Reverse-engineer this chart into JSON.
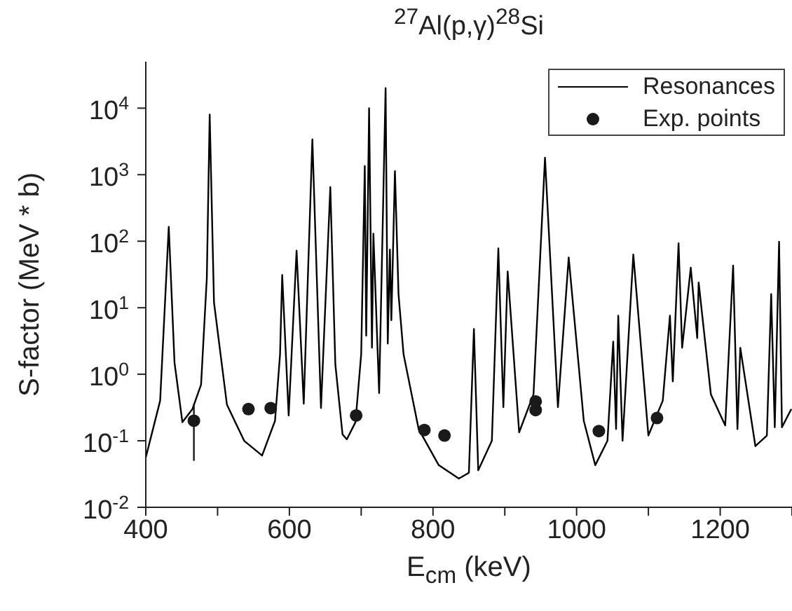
{
  "chart_data": {
    "type": "line",
    "title": "$^{27}$Al(p,γ)$^{28}$Si",
    "xlabel": "E$_{cm}$ (keV)",
    "ylabel": "S-factor (MeV * b)",
    "log": true,
    "legend": "top right",
    "xlim": [
      400,
      1300
    ],
    "xticks": [
      400,
      {
        "value": 500,
        "label": null
      },
      600,
      {
        "value": 700,
        "label": null
      },
      800,
      {
        "value": 900,
        "label": null
      },
      1000,
      {
        "value": 1100,
        "label": null
      },
      1200,
      {
        "value": 1300,
        "label": null
      }
    ],
    "ylim": [
      0.01,
      50000
    ],
    "yticks": [
      {
        "value": 0.01,
        "label": "10$^{-2}$"
      },
      {
        "value": 0.1,
        "label": "10$^{-1}$"
      },
      {
        "value": 1,
        "label": "10$^{0}$"
      },
      {
        "value": 10,
        "label": "10$^{1}$"
      },
      {
        "value": 100,
        "label": "10$^{2}$"
      },
      {
        "value": 1000,
        "label": "10$^{3}$"
      },
      {
        "value": 10000,
        "label": "10$^{4}$"
      }
    ],
    "series": [
      {
        "name": "Resonances",
        "color": "#000000",
        "x": [
          400,
          420,
          432,
          440,
          451,
          465,
          477,
          485,
          489,
          495,
          513,
          537,
          562,
          580,
          587,
          590,
          599,
          610,
          620,
          632,
          644,
          657,
          664,
          674,
          680,
          692,
          700,
          705,
          707,
          711,
          715,
          717,
          725,
          734,
          737,
          740,
          742,
          747,
          752,
          759,
          780,
          808,
          836,
          850,
          857,
          863,
          882,
          891,
          898,
          904,
          920,
          940,
          956,
          974,
          989,
          1010,
          1026,
          1043,
          1051,
          1055,
          1058,
          1064,
          1079,
          1100,
          1120,
          1130,
          1134,
          1142,
          1147,
          1159,
          1168,
          1170,
          1187,
          1207,
          1218,
          1224,
          1228,
          1249,
          1265,
          1271,
          1276,
          1282,
          1286,
          1299
        ],
        "values": [
          0.056,
          0.4,
          165,
          1.5,
          0.19,
          0.3,
          0.7,
          28,
          8000,
          12,
          0.35,
          0.1,
          0.06,
          0.2,
          2,
          31,
          0.24,
          72,
          0.36,
          3400,
          0.31,
          650,
          1.4,
          0.125,
          0.105,
          0.19,
          2,
          1350,
          3.8,
          10000,
          2.5,
          130,
          0.52,
          20000,
          2.9,
          75,
          6.5,
          1130,
          16,
          2,
          0.15,
          0.043,
          0.027,
          0.033,
          4.8,
          0.036,
          0.1,
          78,
          0.32,
          35,
          0.134,
          0.5,
          1800,
          0.32,
          57,
          0.2,
          0.043,
          0.1,
          3.1,
          0.15,
          7.6,
          0.1,
          63,
          0.12,
          0.4,
          7.6,
          0.78,
          93,
          2.5,
          40,
          3.5,
          24,
          0.5,
          0.17,
          43,
          0.15,
          2.5,
          0.083,
          0.12,
          16,
          0.16,
          98,
          0.16,
          0.3
        ]
      },
      {
        "name": "Exp. points",
        "type": "scatter",
        "color": "#1a1a1a",
        "marker": "circle",
        "x": [
          467,
          543,
          574,
          693,
          788,
          816,
          943,
          943,
          1031,
          1112
        ],
        "values": [
          0.2,
          0.3,
          0.31,
          0.24,
          0.145,
          0.12,
          0.39,
          0.29,
          0.14,
          0.22
        ],
        "errors": [
          [
            0.05,
            0.36
          ],
          null,
          null,
          null,
          null,
          null,
          null,
          null,
          null,
          null
        ]
      }
    ]
  }
}
